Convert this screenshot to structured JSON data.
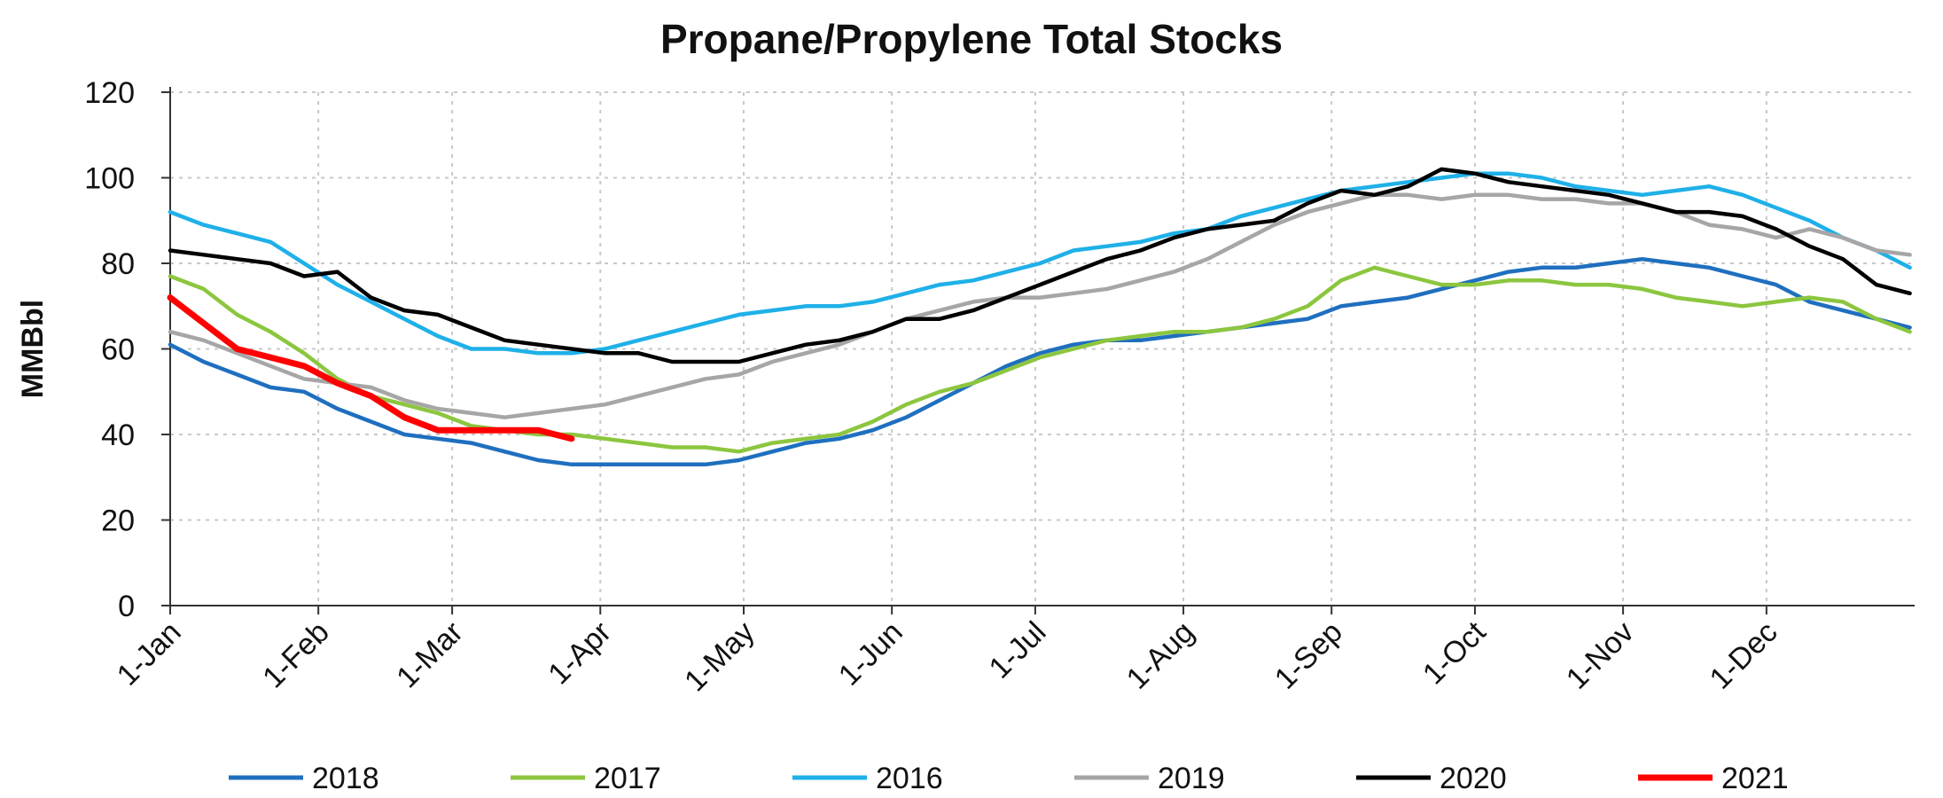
{
  "chart_data": {
    "type": "line",
    "title": "Propane/Propylene Total Stocks",
    "ylabel": "MMBbl",
    "xlabel": "",
    "ylim": [
      0,
      120
    ],
    "yticks": [
      "0",
      "20",
      "40",
      "60",
      "80",
      "100",
      "120"
    ],
    "xlim": [
      0,
      365
    ],
    "xticks": [
      {
        "label": "1-Jan",
        "day": 0
      },
      {
        "label": "1-Feb",
        "day": 31
      },
      {
        "label": "1-Mar",
        "day": 59
      },
      {
        "label": "1-Apr",
        "day": 90
      },
      {
        "label": "1-May",
        "day": 120
      },
      {
        "label": "1-Jun",
        "day": 151
      },
      {
        "label": "1-Jul",
        "day": 181
      },
      {
        "label": "1-Aug",
        "day": 212
      },
      {
        "label": "1-Sep",
        "day": 243
      },
      {
        "label": "1-Oct",
        "day": 273
      },
      {
        "label": "1-Nov",
        "day": 304
      },
      {
        "label": "1-Dec",
        "day": 334
      }
    ],
    "grid": true,
    "legend_position": "bottom",
    "series": [
      {
        "name": "2018",
        "color": "#1f6fbf",
        "x": [
          0,
          7,
          14,
          21,
          28,
          35,
          42,
          49,
          56,
          63,
          70,
          77,
          84,
          91,
          98,
          105,
          112,
          119,
          126,
          133,
          140,
          147,
          154,
          161,
          168,
          175,
          182,
          189,
          196,
          203,
          210,
          217,
          224,
          231,
          238,
          245,
          252,
          259,
          266,
          273,
          280,
          287,
          294,
          301,
          308,
          315,
          322,
          329,
          336,
          343,
          350,
          357,
          364
        ],
        "values": [
          61,
          57,
          54,
          51,
          50,
          46,
          43,
          40,
          39,
          38,
          36,
          34,
          33,
          33,
          33,
          33,
          33,
          34,
          36,
          38,
          39,
          41,
          44,
          48,
          52,
          56,
          59,
          61,
          62,
          62,
          63,
          64,
          65,
          66,
          67,
          70,
          71,
          72,
          74,
          76,
          78,
          79,
          79,
          80,
          81,
          80,
          79,
          77,
          75,
          71,
          69,
          67,
          65
        ]
      },
      {
        "name": "2017",
        "color": "#8cc63f",
        "x": [
          0,
          7,
          14,
          21,
          28,
          35,
          42,
          49,
          56,
          63,
          70,
          77,
          84,
          91,
          98,
          105,
          112,
          119,
          126,
          133,
          140,
          147,
          154,
          161,
          168,
          175,
          182,
          189,
          196,
          203,
          210,
          217,
          224,
          231,
          238,
          245,
          252,
          259,
          266,
          273,
          280,
          287,
          294,
          301,
          308,
          315,
          322,
          329,
          336,
          343,
          350,
          357,
          364
        ],
        "values": [
          77,
          74,
          68,
          64,
          59,
          53,
          49,
          47,
          45,
          42,
          41,
          40,
          40,
          39,
          38,
          37,
          37,
          36,
          38,
          39,
          40,
          43,
          47,
          50,
          52,
          55,
          58,
          60,
          62,
          63,
          64,
          64,
          65,
          67,
          70,
          76,
          79,
          77,
          75,
          75,
          76,
          76,
          75,
          75,
          74,
          72,
          71,
          70,
          71,
          72,
          71,
          67,
          64
        ]
      },
      {
        "name": "2016",
        "color": "#1fb0e8",
        "x": [
          0,
          7,
          14,
          21,
          28,
          35,
          42,
          49,
          56,
          63,
          70,
          77,
          84,
          91,
          98,
          105,
          112,
          119,
          126,
          133,
          140,
          147,
          154,
          161,
          168,
          175,
          182,
          189,
          196,
          203,
          210,
          217,
          224,
          231,
          238,
          245,
          252,
          259,
          266,
          273,
          280,
          287,
          294,
          301,
          308,
          315,
          322,
          329,
          336,
          343,
          350,
          357,
          364
        ],
        "values": [
          92,
          89,
          87,
          85,
          80,
          75,
          71,
          67,
          63,
          60,
          60,
          59,
          59,
          60,
          62,
          64,
          66,
          68,
          69,
          70,
          70,
          71,
          73,
          75,
          76,
          78,
          80,
          83,
          84,
          85,
          87,
          88,
          91,
          93,
          95,
          97,
          98,
          99,
          100,
          101,
          101,
          100,
          98,
          97,
          96,
          97,
          98,
          96,
          93,
          90,
          86,
          83,
          79
        ]
      },
      {
        "name": "2019",
        "color": "#a6a6a6",
        "x": [
          0,
          7,
          14,
          21,
          28,
          35,
          42,
          49,
          56,
          63,
          70,
          77,
          84,
          91,
          98,
          105,
          112,
          119,
          126,
          133,
          140,
          147,
          154,
          161,
          168,
          175,
          182,
          189,
          196,
          203,
          210,
          217,
          224,
          231,
          238,
          245,
          252,
          259,
          266,
          273,
          280,
          287,
          294,
          301,
          308,
          315,
          322,
          329,
          336,
          343,
          350,
          357,
          364
        ],
        "values": [
          64,
          62,
          59,
          56,
          53,
          52,
          51,
          48,
          46,
          45,
          44,
          45,
          46,
          47,
          49,
          51,
          53,
          54,
          57,
          59,
          61,
          64,
          67,
          69,
          71,
          72,
          72,
          73,
          74,
          76,
          78,
          81,
          85,
          89,
          92,
          94,
          96,
          96,
          95,
          96,
          96,
          95,
          95,
          94,
          94,
          92,
          89,
          88,
          86,
          88,
          86,
          83,
          82
        ]
      },
      {
        "name": "2020",
        "color": "#000000",
        "x": [
          0,
          7,
          14,
          21,
          28,
          35,
          42,
          49,
          56,
          63,
          70,
          77,
          84,
          91,
          98,
          105,
          112,
          119,
          126,
          133,
          140,
          147,
          154,
          161,
          168,
          175,
          182,
          189,
          196,
          203,
          210,
          217,
          224,
          231,
          238,
          245,
          252,
          259,
          266,
          273,
          280,
          287,
          294,
          301,
          308,
          315,
          322,
          329,
          336,
          343,
          350,
          357,
          364
        ],
        "values": [
          83,
          82,
          81,
          80,
          77,
          78,
          72,
          69,
          68,
          65,
          62,
          61,
          60,
          59,
          59,
          57,
          57,
          57,
          59,
          61,
          62,
          64,
          67,
          67,
          69,
          72,
          75,
          78,
          81,
          83,
          86,
          88,
          89,
          90,
          94,
          97,
          96,
          98,
          102,
          101,
          99,
          98,
          97,
          96,
          94,
          92,
          92,
          91,
          88,
          84,
          81,
          75,
          73
        ]
      },
      {
        "name": "2021",
        "color": "#ff0000",
        "x": [
          0,
          7,
          14,
          21,
          28,
          35,
          42,
          49,
          56,
          63,
          70,
          77,
          84
        ],
        "values": [
          72,
          66,
          60,
          58,
          56,
          52,
          49,
          44,
          41,
          41,
          41,
          41,
          39
        ]
      }
    ]
  }
}
